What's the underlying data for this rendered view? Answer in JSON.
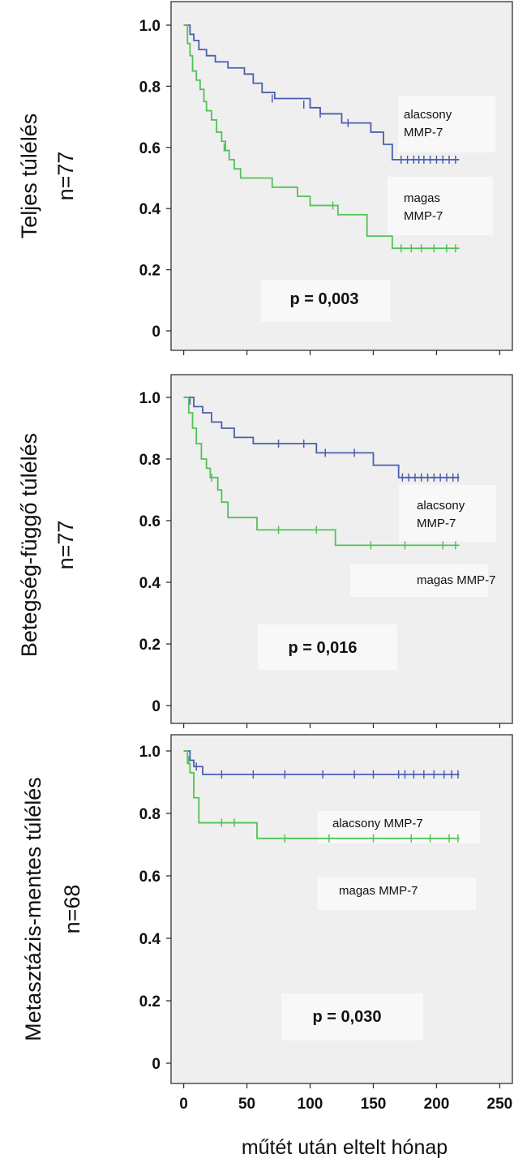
{
  "chart_data": [
    {
      "type": "line",
      "row_label": "Teljes túlélés",
      "row_sublabel": "n=77",
      "p_value": "p = 0,003",
      "xlim": [
        -10,
        260
      ],
      "ylim": [
        0,
        1.0
      ],
      "yticks": [
        "0",
        "0.2",
        "0.4",
        "0.6",
        "0.8",
        "1.0"
      ],
      "series": [
        {
          "name": "alacsony MMP-7",
          "color": "#4a5fb0",
          "steps": [
            [
              0,
              1.0
            ],
            [
              5,
              0.97
            ],
            [
              8,
              0.95
            ],
            [
              12,
              0.92
            ],
            [
              18,
              0.9
            ],
            [
              25,
              0.88
            ],
            [
              35,
              0.86
            ],
            [
              48,
              0.84
            ],
            [
              55,
              0.81
            ],
            [
              62,
              0.78
            ],
            [
              72,
              0.76
            ],
            [
              100,
              0.73
            ],
            [
              108,
              0.71
            ],
            [
              125,
              0.68
            ],
            [
              148,
              0.65
            ],
            [
              158,
              0.61
            ],
            [
              165,
              0.56
            ],
            [
              218,
              0.56
            ]
          ],
          "censors": [
            [
              70,
              0.76
            ],
            [
              95,
              0.74
            ],
            [
              108,
              0.71
            ],
            [
              130,
              0.68
            ],
            [
              172,
              0.56
            ],
            [
              177,
              0.56
            ],
            [
              182,
              0.56
            ],
            [
              186,
              0.56
            ],
            [
              190,
              0.56
            ],
            [
              195,
              0.56
            ],
            [
              200,
              0.56
            ],
            [
              205,
              0.56
            ],
            [
              210,
              0.56
            ],
            [
              215,
              0.56
            ]
          ]
        },
        {
          "name": "magas MMP-7",
          "color": "#52c258",
          "steps": [
            [
              0,
              1.0
            ],
            [
              3,
              0.94
            ],
            [
              5,
              0.9
            ],
            [
              7,
              0.85
            ],
            [
              10,
              0.82
            ],
            [
              13,
              0.79
            ],
            [
              16,
              0.75
            ],
            [
              18,
              0.72
            ],
            [
              22,
              0.69
            ],
            [
              26,
              0.65
            ],
            [
              30,
              0.62
            ],
            [
              33,
              0.59
            ],
            [
              36,
              0.56
            ],
            [
              40,
              0.53
            ],
            [
              45,
              0.5
            ],
            [
              70,
              0.47
            ],
            [
              90,
              0.44
            ],
            [
              100,
              0.41
            ],
            [
              122,
              0.38
            ],
            [
              145,
              0.31
            ],
            [
              165,
              0.27
            ],
            [
              218,
              0.27
            ]
          ],
          "censors": [
            [
              32,
              0.6
            ],
            [
              118,
              0.41
            ],
            [
              172,
              0.27
            ],
            [
              180,
              0.27
            ],
            [
              188,
              0.27
            ],
            [
              198,
              0.27
            ],
            [
              208,
              0.27
            ],
            [
              215,
              0.27
            ]
          ]
        }
      ],
      "annotations": [
        {
          "lines": [
            "alacsony",
            "MMP-7"
          ],
          "series": 0
        },
        {
          "lines": [
            "magas",
            "MMP-7"
          ],
          "series": 1
        }
      ]
    },
    {
      "type": "line",
      "row_label": "Betegség-függő túlélés",
      "row_sublabel": "n=77",
      "p_value": "p = 0,016",
      "xlim": [
        -10,
        260
      ],
      "ylim": [
        0,
        1.0
      ],
      "yticks": [
        "0",
        "0.2",
        "0.4",
        "0.6",
        "0.8",
        "1.0"
      ],
      "series": [
        {
          "name": "alacsony MMP-7",
          "color": "#4a5fb0",
          "steps": [
            [
              0,
              1.0
            ],
            [
              8,
              0.97
            ],
            [
              15,
              0.95
            ],
            [
              22,
              0.92
            ],
            [
              30,
              0.9
            ],
            [
              40,
              0.87
            ],
            [
              55,
              0.85
            ],
            [
              105,
              0.82
            ],
            [
              150,
              0.78
            ],
            [
              170,
              0.74
            ],
            [
              218,
              0.74
            ]
          ],
          "censors": [
            [
              5,
              0.99
            ],
            [
              75,
              0.85
            ],
            [
              95,
              0.85
            ],
            [
              112,
              0.82
            ],
            [
              135,
              0.82
            ],
            [
              173,
              0.74
            ],
            [
              178,
              0.74
            ],
            [
              183,
              0.74
            ],
            [
              188,
              0.74
            ],
            [
              193,
              0.74
            ],
            [
              198,
              0.74
            ],
            [
              203,
              0.74
            ],
            [
              208,
              0.74
            ],
            [
              213,
              0.74
            ],
            [
              217,
              0.74
            ]
          ]
        },
        {
          "name": "magas MMP-7",
          "color": "#52c258",
          "steps": [
            [
              0,
              1.0
            ],
            [
              4,
              0.95
            ],
            [
              7,
              0.9
            ],
            [
              10,
              0.85
            ],
            [
              14,
              0.8
            ],
            [
              18,
              0.77
            ],
            [
              21,
              0.74
            ],
            [
              27,
              0.7
            ],
            [
              30,
              0.66
            ],
            [
              35,
              0.61
            ],
            [
              58,
              0.57
            ],
            [
              120,
              0.52
            ],
            [
              218,
              0.52
            ]
          ],
          "censors": [
            [
              22,
              0.74
            ],
            [
              27,
              0.71
            ],
            [
              75,
              0.57
            ],
            [
              105,
              0.57
            ],
            [
              148,
              0.52
            ],
            [
              175,
              0.52
            ],
            [
              205,
              0.52
            ],
            [
              215,
              0.52
            ]
          ]
        }
      ],
      "annotations": [
        {
          "lines": [
            "alacsony",
            "MMP-7"
          ],
          "series": 0
        },
        {
          "lines": [
            "magas MMP-7"
          ],
          "series": 1
        }
      ]
    },
    {
      "type": "line",
      "row_label": "Metasztázis-mentes túlélés",
      "row_sublabel": "n=68",
      "p_value": "p = 0,030",
      "xlabel": "műtét után eltelt hónap",
      "xticks": [
        "0",
        "50",
        "100",
        "150",
        "200",
        "250"
      ],
      "xlim": [
        -10,
        260
      ],
      "ylim": [
        0,
        1.0
      ],
      "yticks": [
        "0",
        "0.2",
        "0.4",
        "0.6",
        "0.8",
        "1.0"
      ],
      "series": [
        {
          "name": "alacsony MMP-7",
          "color": "#4a5fb0",
          "steps": [
            [
              0,
              1.0
            ],
            [
              5,
              0.97
            ],
            [
              8,
              0.95
            ],
            [
              15,
              0.925
            ],
            [
              218,
              0.925
            ]
          ],
          "censors": [
            [
              10,
              0.95
            ],
            [
              30,
              0.925
            ],
            [
              55,
              0.925
            ],
            [
              80,
              0.925
            ],
            [
              110,
              0.925
            ],
            [
              135,
              0.925
            ],
            [
              150,
              0.925
            ],
            [
              170,
              0.925
            ],
            [
              175,
              0.925
            ],
            [
              182,
              0.925
            ],
            [
              190,
              0.925
            ],
            [
              198,
              0.925
            ],
            [
              206,
              0.925
            ],
            [
              212,
              0.925
            ],
            [
              217,
              0.925
            ]
          ]
        },
        {
          "name": "magas MMP-7",
          "color": "#52c258",
          "steps": [
            [
              0,
              1.0
            ],
            [
              3,
              0.96
            ],
            [
              5,
              0.93
            ],
            [
              8,
              0.85
            ],
            [
              12,
              0.77
            ],
            [
              58,
              0.72
            ],
            [
              218,
              0.72
            ]
          ],
          "censors": [
            [
              4,
              0.97
            ],
            [
              30,
              0.77
            ],
            [
              40,
              0.77
            ],
            [
              80,
              0.72
            ],
            [
              115,
              0.72
            ],
            [
              150,
              0.72
            ],
            [
              180,
              0.72
            ],
            [
              195,
              0.72
            ],
            [
              210,
              0.72
            ],
            [
              217,
              0.72
            ]
          ]
        }
      ],
      "annotations": [
        {
          "lines": [
            "alacsony MMP-7"
          ],
          "series": 0
        },
        {
          "lines": [
            "magas MMP-7"
          ],
          "series": 1
        }
      ]
    }
  ]
}
